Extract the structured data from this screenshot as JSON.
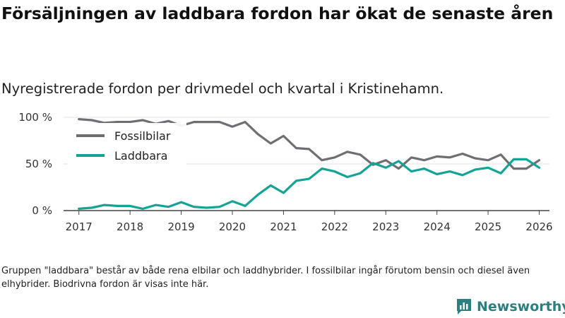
{
  "title": "Försäljningen av laddbara fordon har ökat de senaste åren",
  "subtitle": "Nyregistrerade fordon per drivmedel och kvartal i Kristinehamn.",
  "footnote": "Gruppen \"laddbara\" består av både rena elbilar och laddhybrider. I fossilbilar ingår förutom bensin och diesel även elhybrider. Biodrivna fordon är visas inte här.",
  "brand": {
    "name": "Newsworthy",
    "icon": "newsworthy-logo-icon",
    "color": "#2a7f7f"
  },
  "chart_data": {
    "type": "line",
    "title": "Försäljningen av laddbara fordon har ökat de senaste åren",
    "subtitle": "Nyregistrerade fordon per drivmedel och kvartal i Kristinehamn.",
    "xlabel": "",
    "ylabel": "",
    "x_ticks": [
      "2017",
      "2018",
      "2019",
      "2020",
      "2021",
      "2022",
      "2023",
      "2024",
      "2025",
      "2026"
    ],
    "y_ticks": [
      "0 %",
      "50 %",
      "100 %"
    ],
    "y_tick_values": [
      0,
      50,
      100
    ],
    "xlim": [
      2016.7,
      2026.2
    ],
    "ylim": [
      0,
      100
    ],
    "grid": "horizontal",
    "legend_position": "top-left",
    "x": [
      2017.0,
      2017.25,
      2017.5,
      2017.75,
      2018.0,
      2018.25,
      2018.5,
      2018.75,
      2019.0,
      2019.25,
      2019.5,
      2019.75,
      2020.0,
      2020.25,
      2020.5,
      2020.75,
      2021.0,
      2021.25,
      2021.5,
      2021.75,
      2022.0,
      2022.25,
      2022.5,
      2022.75,
      2023.0,
      2023.25,
      2023.5,
      2023.75,
      2024.0,
      2024.25,
      2024.5,
      2024.75,
      2025.0,
      2025.25,
      2025.5,
      2025.75,
      2026.0
    ],
    "series": [
      {
        "name": "Fossilbilar",
        "color": "#6e6e73",
        "values": [
          98,
          97,
          94,
          95,
          95,
          97,
          93,
          96,
          91,
          95,
          95,
          95,
          90,
          95,
          82,
          72,
          80,
          67,
          66,
          54,
          57,
          63,
          60,
          49,
          54,
          45,
          57,
          54,
          58,
          57,
          61,
          56,
          54,
          60,
          45,
          45,
          54
        ]
      },
      {
        "name": "Laddbara",
        "color": "#14a394",
        "values": [
          2,
          3,
          6,
          5,
          5,
          2,
          6,
          4,
          9,
          4,
          3,
          4,
          10,
          5,
          17,
          27,
          19,
          32,
          34,
          45,
          42,
          36,
          40,
          51,
          46,
          53,
          42,
          45,
          39,
          42,
          38,
          44,
          46,
          40,
          55,
          55,
          46
        ]
      }
    ]
  }
}
